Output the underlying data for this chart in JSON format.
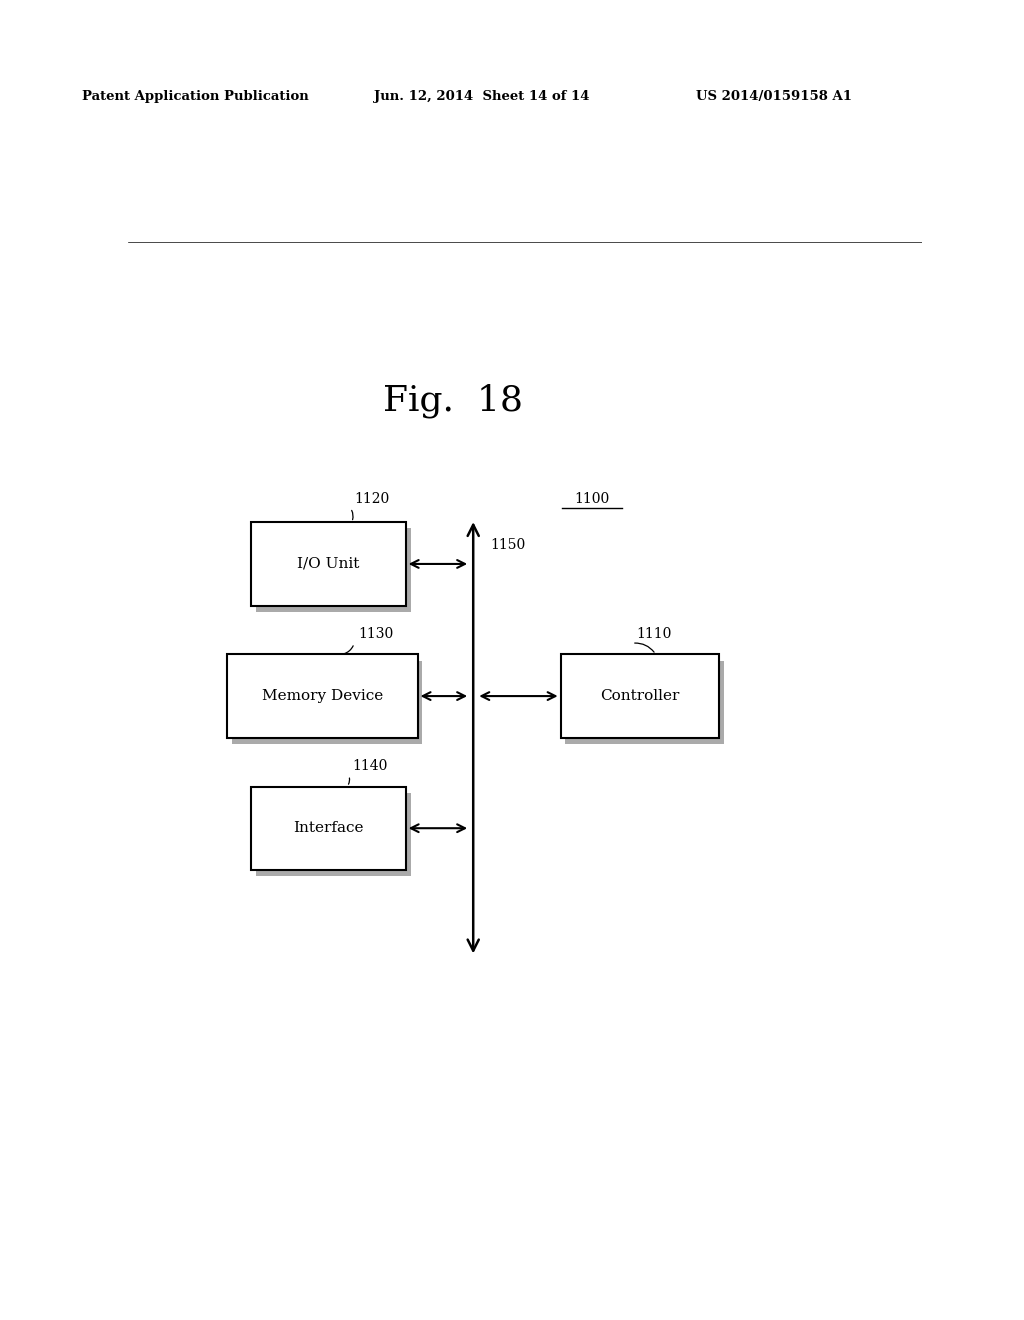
{
  "fig_title": "Fig.  18",
  "header_left": "Patent Application Publication",
  "header_mid": "Jun. 12, 2014  Sheet 14 of 14",
  "header_right": "US 2014/0159158 A1",
  "bg_color": "#ffffff",
  "label_1100": "1100",
  "label_1110": "1110",
  "label_1120": "1120",
  "label_1130": "1130",
  "label_1140": "1140",
  "label_1150": "1150",
  "box_io_label": "I/O Unit",
  "box_mem_label": "Memory Device",
  "box_iface_label": "Interface",
  "box_ctrl_label": "Controller"
}
